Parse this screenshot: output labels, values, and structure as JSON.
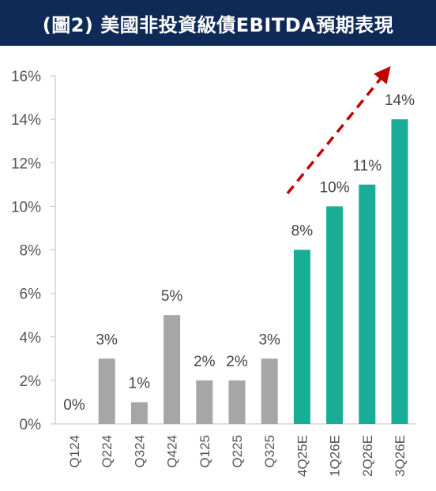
{
  "chart_data": {
    "type": "bar",
    "title": "(圖2) 美國非投資級債EBITDA預期表現",
    "categories": [
      "Q124",
      "Q224",
      "Q324",
      "Q424",
      "Q125",
      "Q225",
      "Q325",
      "4Q25E",
      "1Q26E",
      "2Q26E",
      "3Q26E"
    ],
    "values": [
      0,
      3,
      1,
      5,
      2,
      2,
      3,
      8,
      10,
      11,
      14
    ],
    "data_labels": [
      "0%",
      "3%",
      "1%",
      "5%",
      "2%",
      "2%",
      "3%",
      "8%",
      "10%",
      "11%",
      "14%"
    ],
    "estimate": [
      false,
      false,
      false,
      false,
      false,
      false,
      false,
      true,
      true,
      true,
      true
    ],
    "ylim": [
      0,
      16
    ],
    "yticks": [
      0,
      2,
      4,
      6,
      8,
      10,
      12,
      14,
      16
    ],
    "ytick_labels": [
      "0%",
      "2%",
      "4%",
      "6%",
      "8%",
      "10%",
      "12%",
      "14%",
      "16%"
    ],
    "xlabel": "",
    "ylabel": "",
    "grid": false,
    "trend_arrow": true,
    "colors": {
      "actual": "#a6a6a6",
      "estimate": "#17ad96",
      "arrow": "#c00000",
      "title_bg": "#0f2a57",
      "axis": "#bfbfbf"
    }
  }
}
